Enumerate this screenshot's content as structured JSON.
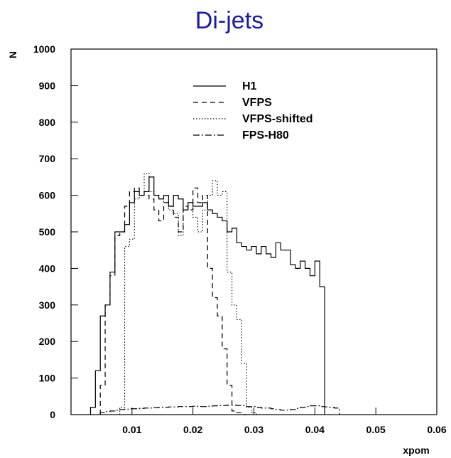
{
  "chart_data": {
    "type": "line",
    "title": "Di-jets",
    "xlabel": "xpom",
    "ylabel": "N",
    "xlim": [
      0,
      0.06
    ],
    "ylim": [
      0,
      1000
    ],
    "x_ticks": [
      {
        "value": 0.01,
        "label": "0.01"
      },
      {
        "value": 0.02,
        "label": "0.02"
      },
      {
        "value": 0.03,
        "label": "0.03"
      },
      {
        "value": 0.04,
        "label": "0.04"
      },
      {
        "value": 0.05,
        "label": "0.05"
      },
      {
        "value": 0.06,
        "label": "0.06"
      }
    ],
    "y_ticks": [
      {
        "value": 0,
        "label": "0"
      },
      {
        "value": 100,
        "label": "100"
      },
      {
        "value": 200,
        "label": "200"
      },
      {
        "value": 300,
        "label": "300"
      },
      {
        "value": 400,
        "label": "400"
      },
      {
        "value": 500,
        "label": "500"
      },
      {
        "value": 600,
        "label": "600"
      },
      {
        "value": 700,
        "label": "700"
      },
      {
        "value": 800,
        "label": "800"
      },
      {
        "value": 900,
        "label": "900"
      },
      {
        "value": 1000,
        "label": "1000"
      }
    ],
    "grid": false,
    "legend_position": "top-center",
    "bin_width": 0.0008,
    "series": [
      {
        "name": "H1",
        "style": "solid",
        "x_start": 0.0032,
        "values": [
          20,
          120,
          270,
          300,
          390,
          500,
          500,
          520,
          580,
          610,
          600,
          610,
          650,
          600,
          590,
          600,
          570,
          600,
          590,
          560,
          580,
          570,
          570,
          580,
          560,
          550,
          540,
          530,
          500,
          510,
          470,
          460,
          450,
          460,
          440,
          460,
          440,
          430,
          470,
          450,
          450,
          410,
          400,
          420,
          400,
          380,
          420,
          350
        ]
      },
      {
        "name": "VFPS",
        "style": "dashed",
        "x_start": 0.0048,
        "values": [
          80,
          300,
          380,
          490,
          500,
          570,
          610,
          620,
          600,
          600,
          590,
          560,
          530,
          580,
          570,
          540,
          500,
          570,
          560,
          620,
          580,
          600,
          400,
          320,
          270,
          180,
          80,
          10,
          5,
          0
        ]
      },
      {
        "name": "VFPS-shifted",
        "style": "dotted",
        "x_start": 0.008,
        "values": [
          20,
          460,
          480,
          590,
          600,
          660,
          610,
          600,
          590,
          580,
          560,
          550,
          490,
          560,
          580,
          540,
          500,
          560,
          600,
          640,
          600,
          610,
          390,
          300,
          260,
          140,
          20,
          5
        ]
      },
      {
        "name": "FPS-H80",
        "style": "dashdot",
        "x_start": 0.0048,
        "values": [
          5,
          8,
          10,
          12,
          14,
          15,
          16,
          16,
          17,
          18,
          18,
          19,
          20,
          20,
          21,
          21,
          22,
          22,
          22,
          23,
          22,
          22,
          23,
          24,
          25,
          25,
          26,
          26,
          25,
          25,
          22,
          22,
          20,
          18,
          18,
          16,
          14,
          12,
          12,
          14,
          17,
          20,
          22,
          24,
          24,
          22,
          21,
          20,
          18
        ]
      }
    ]
  }
}
